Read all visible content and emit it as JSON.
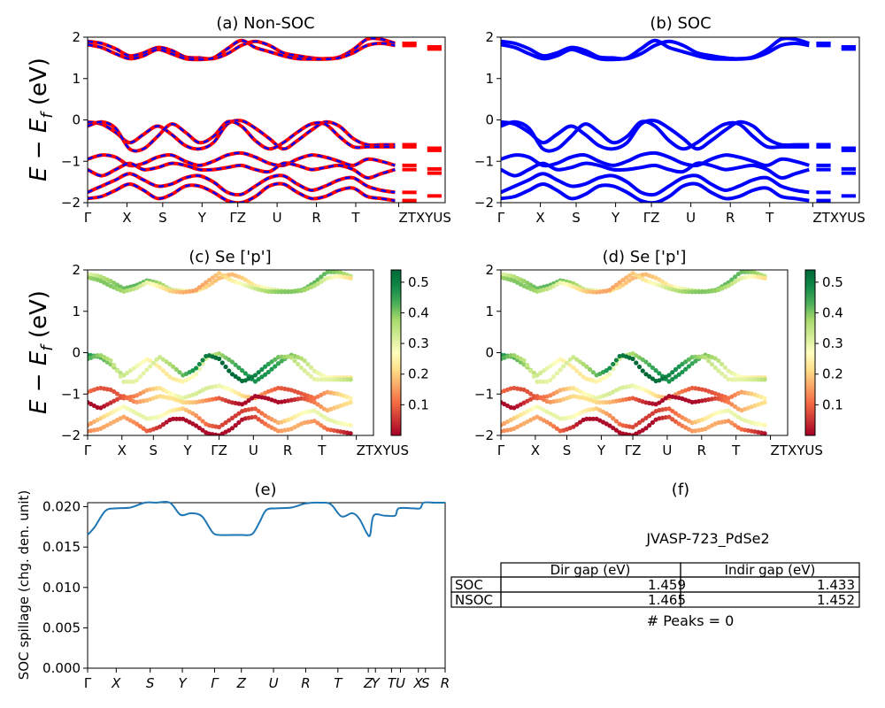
{
  "figure": {
    "ylabel_main": "E − E_f (eV)",
    "ylabel_main_sub": "f"
  },
  "chart_data": [
    {
      "id": "a",
      "type": "line",
      "title": "(a) Non-SOC",
      "ylim": [
        -2,
        2
      ],
      "yticks": [
        "2",
        "1",
        "0",
        "−1",
        "−2"
      ],
      "ytick_values": [
        2,
        1,
        0,
        -1,
        -2
      ],
      "xticks": [
        "Γ",
        "X",
        "S",
        "Y",
        "ΓZ",
        "U",
        "R",
        "T",
        "ZTXYUS"
      ],
      "xtick_positions": [
        0,
        0.11,
        0.21,
        0.32,
        0.42,
        0.53,
        0.64,
        0.75,
        0.87
      ],
      "series": [
        {
          "color": "#ff0000",
          "style": "solid"
        },
        {
          "color": "#0000ff",
          "style": "dashed"
        }
      ],
      "bands": [
        [
          1.9,
          1.85,
          1.72,
          1.55,
          1.62,
          1.75,
          1.68,
          1.52,
          1.5,
          1.48,
          1.6,
          1.8,
          1.9,
          1.8,
          1.62,
          1.55,
          1.5,
          1.48,
          1.52,
          1.7,
          1.95,
          1.95,
          1.85
        ],
        [
          1.82,
          1.75,
          1.6,
          1.48,
          1.55,
          1.7,
          1.6,
          1.48,
          1.46,
          1.5,
          1.72,
          1.92,
          1.75,
          1.65,
          1.55,
          1.48,
          1.47,
          1.47,
          1.5,
          1.62,
          1.8,
          1.85,
          1.8
        ],
        [
          -0.05,
          -0.1,
          -0.3,
          -0.55,
          -0.35,
          -0.15,
          -0.35,
          -0.62,
          -0.7,
          -0.55,
          -0.1,
          -0.02,
          -0.2,
          -0.45,
          -0.7,
          -0.5,
          -0.25,
          -0.05,
          -0.15,
          -0.45,
          -0.6,
          -0.6,
          -0.6
        ],
        [
          -0.15,
          -0.05,
          -0.2,
          -0.7,
          -0.7,
          -0.4,
          -0.1,
          -0.3,
          -0.55,
          -0.4,
          -0.05,
          -0.15,
          -0.5,
          -0.7,
          -0.55,
          -0.3,
          -0.1,
          -0.1,
          -0.4,
          -0.65,
          -0.65,
          -0.65,
          -0.65
        ],
        [
          -0.95,
          -0.85,
          -0.9,
          -1.1,
          -1.05,
          -0.9,
          -0.85,
          -1.0,
          -1.1,
          -1.0,
          -0.85,
          -0.8,
          -0.9,
          -1.05,
          -1.1,
          -0.95,
          -0.85,
          -0.9,
          -1.0,
          -1.1,
          -0.95,
          -1.0,
          -1.1
        ],
        [
          -1.2,
          -1.35,
          -1.2,
          -1.05,
          -1.2,
          -1.15,
          -1.05,
          -1.1,
          -1.2,
          -1.2,
          -1.15,
          -1.1,
          -1.2,
          -1.25,
          -1.05,
          -1.1,
          -1.2,
          -1.15,
          -1.1,
          -1.2,
          -1.4,
          -1.3,
          -1.2
        ],
        [
          -1.75,
          -1.6,
          -1.45,
          -1.3,
          -1.45,
          -1.6,
          -1.55,
          -1.4,
          -1.35,
          -1.5,
          -1.75,
          -1.8,
          -1.6,
          -1.4,
          -1.35,
          -1.55,
          -1.7,
          -1.6,
          -1.45,
          -1.4,
          -1.6,
          -1.7,
          -1.75
        ],
        [
          -1.9,
          -1.85,
          -1.7,
          -1.55,
          -1.7,
          -1.9,
          -1.8,
          -1.6,
          -1.6,
          -1.75,
          -1.95,
          -2.0,
          -1.85,
          -1.6,
          -1.55,
          -1.75,
          -1.9,
          -1.85,
          -1.7,
          -1.65,
          -1.85,
          -1.9,
          -1.95
        ]
      ]
    },
    {
      "id": "b",
      "type": "line",
      "title": "(b) SOC",
      "ylim": [
        -2,
        2
      ],
      "yticks": [
        "2",
        "1",
        "0",
        "−1",
        "−2"
      ],
      "ytick_values": [
        2,
        1,
        0,
        -1,
        -2
      ],
      "xticks": [
        "Γ",
        "X",
        "S",
        "Y",
        "ΓZ",
        "U",
        "R",
        "T",
        "ZTXYUS"
      ],
      "xtick_positions": [
        0,
        0.11,
        0.21,
        0.32,
        0.42,
        0.53,
        0.64,
        0.75,
        0.87
      ],
      "series": [
        {
          "color": "#0000ff",
          "style": "solid"
        }
      ],
      "bands": [
        [
          1.9,
          1.85,
          1.72,
          1.55,
          1.62,
          1.75,
          1.68,
          1.52,
          1.5,
          1.48,
          1.6,
          1.8,
          1.9,
          1.8,
          1.62,
          1.55,
          1.5,
          1.48,
          1.52,
          1.7,
          1.95,
          1.95,
          1.85
        ],
        [
          1.82,
          1.75,
          1.6,
          1.48,
          1.55,
          1.7,
          1.6,
          1.48,
          1.46,
          1.5,
          1.72,
          1.92,
          1.75,
          1.65,
          1.55,
          1.48,
          1.47,
          1.47,
          1.5,
          1.62,
          1.8,
          1.85,
          1.8
        ],
        [
          -0.05,
          -0.1,
          -0.3,
          -0.55,
          -0.35,
          -0.15,
          -0.35,
          -0.62,
          -0.7,
          -0.55,
          -0.1,
          -0.02,
          -0.2,
          -0.45,
          -0.7,
          -0.5,
          -0.25,
          -0.05,
          -0.15,
          -0.45,
          -0.6,
          -0.6,
          -0.6
        ],
        [
          -0.15,
          -0.05,
          -0.2,
          -0.7,
          -0.7,
          -0.4,
          -0.1,
          -0.3,
          -0.55,
          -0.4,
          -0.05,
          -0.15,
          -0.5,
          -0.7,
          -0.55,
          -0.3,
          -0.1,
          -0.1,
          -0.4,
          -0.65,
          -0.65,
          -0.65,
          -0.65
        ],
        [
          -0.95,
          -0.85,
          -0.9,
          -1.1,
          -1.05,
          -0.9,
          -0.85,
          -1.0,
          -1.1,
          -1.0,
          -0.85,
          -0.8,
          -0.9,
          -1.05,
          -1.1,
          -0.95,
          -0.85,
          -0.9,
          -1.0,
          -1.1,
          -0.95,
          -1.0,
          -1.1
        ],
        [
          -1.2,
          -1.35,
          -1.2,
          -1.05,
          -1.2,
          -1.15,
          -1.05,
          -1.1,
          -1.2,
          -1.2,
          -1.15,
          -1.1,
          -1.2,
          -1.25,
          -1.05,
          -1.1,
          -1.2,
          -1.15,
          -1.1,
          -1.2,
          -1.4,
          -1.3,
          -1.2
        ],
        [
          -1.75,
          -1.6,
          -1.45,
          -1.3,
          -1.45,
          -1.6,
          -1.55,
          -1.4,
          -1.35,
          -1.5,
          -1.75,
          -1.8,
          -1.6,
          -1.4,
          -1.35,
          -1.55,
          -1.7,
          -1.6,
          -1.45,
          -1.4,
          -1.6,
          -1.7,
          -1.75
        ],
        [
          -1.9,
          -1.85,
          -1.7,
          -1.55,
          -1.7,
          -1.9,
          -1.8,
          -1.6,
          -1.6,
          -1.75,
          -1.95,
          -2.0,
          -1.85,
          -1.6,
          -1.55,
          -1.75,
          -1.9,
          -1.85,
          -1.7,
          -1.65,
          -1.85,
          -1.9,
          -1.95
        ]
      ]
    },
    {
      "id": "c",
      "type": "scatter",
      "title": "(c)  Se ['p']",
      "ylim": [
        -2,
        2
      ],
      "yticks": [
        "2",
        "1",
        "0",
        "−1",
        "−2"
      ],
      "ytick_values": [
        2,
        1,
        0,
        -1,
        -2
      ],
      "xticks": [
        "Γ",
        "X",
        "S",
        "Y",
        "ΓZ",
        "U",
        "R",
        "T",
        "ZTXYUS"
      ],
      "xtick_positions": [
        0,
        0.12,
        0.23,
        0.35,
        0.46,
        0.58,
        0.7,
        0.82,
        0.94
      ],
      "colorbar": {
        "ticks": [
          "0.5",
          "0.4",
          "0.3",
          "0.2",
          "0.1"
        ],
        "tick_values": [
          0.5,
          0.4,
          0.3,
          0.2,
          0.1
        ],
        "range": [
          0.0,
          0.54
        ],
        "colormap": "RdYlGn"
      },
      "band_weights": [
        0.3,
        0.28,
        0.35,
        0.42,
        0.2,
        0.1,
        0.18,
        0.05
      ]
    },
    {
      "id": "d",
      "type": "scatter",
      "title": "(d) Se ['p']",
      "ylim": [
        -2,
        2
      ],
      "yticks": [
        "2",
        "1",
        "0",
        "−1",
        "−2"
      ],
      "ytick_values": [
        2,
        1,
        0,
        -1,
        -2
      ],
      "xticks": [
        "Γ",
        "X",
        "S",
        "Y",
        "ΓZ",
        "U",
        "R",
        "T",
        "ZTXYUS"
      ],
      "xtick_positions": [
        0,
        0.12,
        0.23,
        0.35,
        0.46,
        0.58,
        0.7,
        0.82,
        0.94
      ],
      "colorbar": {
        "ticks": [
          "0.5",
          "0.4",
          "0.3",
          "0.2",
          "0.1"
        ],
        "tick_values": [
          0.5,
          0.4,
          0.3,
          0.2,
          0.1
        ],
        "range": [
          0.0,
          0.54
        ],
        "colormap": "RdYlGn"
      },
      "band_weights": [
        0.3,
        0.28,
        0.35,
        0.42,
        0.2,
        0.1,
        0.18,
        0.05
      ]
    },
    {
      "id": "e",
      "type": "line",
      "title": "(e)",
      "ylabel": "SOC spillage (chg. den. unit)",
      "ylim": [
        0,
        0.0205
      ],
      "yticks": [
        "0.020",
        "0.015",
        "0.010",
        "0.005",
        "0.000"
      ],
      "ytick_values": [
        0.02,
        0.015,
        0.01,
        0.005,
        0.0
      ],
      "xticks": [
        "Γ",
        "X",
        "S",
        "Y",
        "Γ",
        "Z",
        "U",
        "R",
        "T",
        "Z",
        "Y",
        "T",
        "U",
        "X",
        "S",
        "R"
      ],
      "xtick_positions": [
        0,
        0.08,
        0.175,
        0.265,
        0.355,
        0.43,
        0.52,
        0.61,
        0.7,
        0.785,
        0.805,
        0.85,
        0.875,
        0.925,
        0.945,
        1.0
      ],
      "x": [
        0,
        0.02,
        0.05,
        0.08,
        0.12,
        0.16,
        0.19,
        0.23,
        0.26,
        0.29,
        0.32,
        0.35,
        0.37,
        0.4,
        0.43,
        0.46,
        0.48,
        0.5,
        0.53,
        0.57,
        0.61,
        0.65,
        0.68,
        0.71,
        0.74,
        0.76,
        0.78,
        0.79,
        0.8,
        0.83,
        0.86,
        0.87,
        0.91,
        0.93,
        0.94,
        0.97,
        1.0
      ],
      "y": [
        0.0165,
        0.0175,
        0.0195,
        0.0198,
        0.0199,
        0.0205,
        0.0205,
        0.0205,
        0.019,
        0.0192,
        0.0188,
        0.0168,
        0.0165,
        0.0165,
        0.0165,
        0.0166,
        0.018,
        0.0196,
        0.0198,
        0.0199,
        0.0204,
        0.0205,
        0.0203,
        0.0188,
        0.0192,
        0.0185,
        0.0168,
        0.0165,
        0.0189,
        0.0189,
        0.0189,
        0.0198,
        0.0198,
        0.0198,
        0.0205,
        0.0205,
        0.0205
      ],
      "series": [
        {
          "color": "#1f77b4"
        }
      ]
    }
  ],
  "panel_f": {
    "title": "(f)",
    "caption": "JVASP-723_PdSe2",
    "table": {
      "headers": [
        "",
        "Dir gap (eV)",
        "Indir gap (eV)"
      ],
      "rows": [
        [
          "SOC",
          "1.459",
          "1.433"
        ],
        [
          "NSOC",
          "1.465",
          "1.452"
        ]
      ]
    },
    "peaks": "# Peaks = 0"
  }
}
